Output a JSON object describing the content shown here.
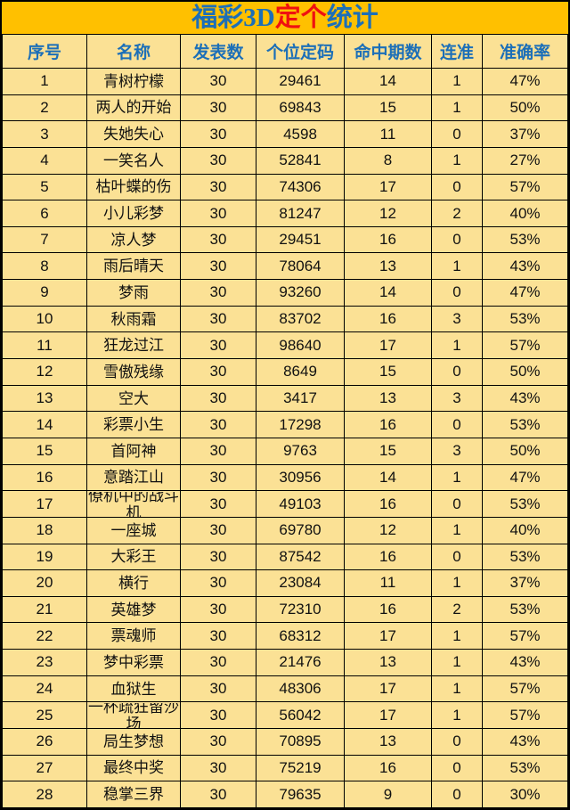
{
  "chart_data": {
    "type": "table",
    "title": "福彩3D定个统计",
    "title_segments": [
      {
        "text": "福彩3D",
        "color": "blue"
      },
      {
        "text": "定个",
        "color": "red"
      },
      {
        "text": "统计",
        "color": "blue"
      }
    ],
    "columns": [
      "序号",
      "名称",
      "发表数",
      "个位定码",
      "命中期数",
      "连准",
      "准确率"
    ],
    "rows": [
      [
        "1",
        "青树柠檬",
        "30",
        "29461",
        "14",
        "1",
        "47%"
      ],
      [
        "2",
        "两人的开始",
        "30",
        "69843",
        "15",
        "1",
        "50%"
      ],
      [
        "3",
        "失她失心",
        "30",
        "4598",
        "11",
        "0",
        "37%"
      ],
      [
        "4",
        "一笑名人",
        "30",
        "52841",
        "8",
        "1",
        "27%"
      ],
      [
        "5",
        "枯叶蝶的伤",
        "30",
        "74306",
        "17",
        "0",
        "57%"
      ],
      [
        "6",
        "小儿彩梦",
        "30",
        "81247",
        "12",
        "2",
        "40%"
      ],
      [
        "7",
        "凉人梦",
        "30",
        "29451",
        "16",
        "0",
        "53%"
      ],
      [
        "8",
        "雨后晴天",
        "30",
        "78064",
        "13",
        "1",
        "43%"
      ],
      [
        "9",
        "梦雨",
        "30",
        "93260",
        "14",
        "0",
        "47%"
      ],
      [
        "10",
        "秋雨霜",
        "30",
        "83702",
        "16",
        "3",
        "53%"
      ],
      [
        "11",
        "狂龙过江",
        "30",
        "98640",
        "17",
        "1",
        "57%"
      ],
      [
        "12",
        "雪傲残缘",
        "30",
        "8649",
        "15",
        "0",
        "50%"
      ],
      [
        "13",
        "空大",
        "30",
        "3417",
        "13",
        "3",
        "43%"
      ],
      [
        "14",
        "彩票小生",
        "30",
        "17298",
        "16",
        "0",
        "53%"
      ],
      [
        "15",
        "首阿神",
        "30",
        "9763",
        "15",
        "3",
        "50%"
      ],
      [
        "16",
        "意踏江山",
        "30",
        "30956",
        "14",
        "1",
        "47%"
      ],
      [
        "17",
        "僚机中的战斗机",
        "30",
        "49103",
        "16",
        "0",
        "53%"
      ],
      [
        "18",
        "一座城",
        "30",
        "69780",
        "12",
        "1",
        "40%"
      ],
      [
        "19",
        "大彩王",
        "30",
        "87542",
        "16",
        "0",
        "53%"
      ],
      [
        "20",
        "横行",
        "30",
        "23084",
        "11",
        "1",
        "37%"
      ],
      [
        "21",
        "英雄梦",
        "30",
        "72310",
        "16",
        "2",
        "53%"
      ],
      [
        "22",
        "票魂师",
        "30",
        "68312",
        "17",
        "1",
        "57%"
      ],
      [
        "23",
        "梦中彩票",
        "30",
        "21476",
        "13",
        "1",
        "43%"
      ],
      [
        "24",
        "血狱生",
        "30",
        "48306",
        "17",
        "1",
        "57%"
      ],
      [
        "25",
        "一杯疏狂留沙场",
        "30",
        "56042",
        "17",
        "1",
        "57%"
      ],
      [
        "26",
        "局生梦想",
        "30",
        "70895",
        "13",
        "0",
        "43%"
      ],
      [
        "27",
        "最终中奖",
        "30",
        "75219",
        "16",
        "0",
        "53%"
      ],
      [
        "28",
        "稳掌三界",
        "30",
        "79635",
        "9",
        "0",
        "30%"
      ]
    ]
  },
  "colors": {
    "page_background": "#FFC000",
    "cell_background": "#FBE195",
    "header_text_blue": "#1C6FB8",
    "title_blue": "#1C6FB8",
    "title_red": "#F01010",
    "grid_border": "#000000",
    "cell_text": "#111111"
  }
}
